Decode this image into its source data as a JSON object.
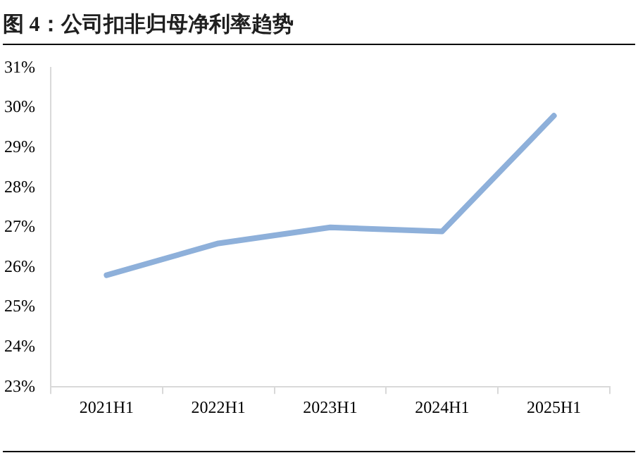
{
  "chart_data": {
    "type": "line",
    "title": "图 4：公司扣非归母净利率趋势",
    "categories": [
      "2021H1",
      "2022H1",
      "2023H1",
      "2024H1",
      "2025H1"
    ],
    "series": [
      {
        "color": "#8eb0da",
        "values": [
          25.8,
          26.6,
          27.0,
          26.9,
          29.8
        ]
      }
    ],
    "ylim": [
      23,
      31
    ],
    "yticks": [
      {
        "value": 23,
        "label": "23%"
      },
      {
        "value": 24,
        "label": "24%"
      },
      {
        "value": 25,
        "label": "25%"
      },
      {
        "value": 26,
        "label": "26%"
      },
      {
        "value": 27,
        "label": "27%"
      },
      {
        "value": 28,
        "label": "28%"
      },
      {
        "value": 29,
        "label": "29%"
      },
      {
        "value": 30,
        "label": "30%"
      },
      {
        "value": 31,
        "label": "31%"
      }
    ],
    "grid": false,
    "legend": false,
    "marker": "none",
    "line_style": "solid"
  }
}
